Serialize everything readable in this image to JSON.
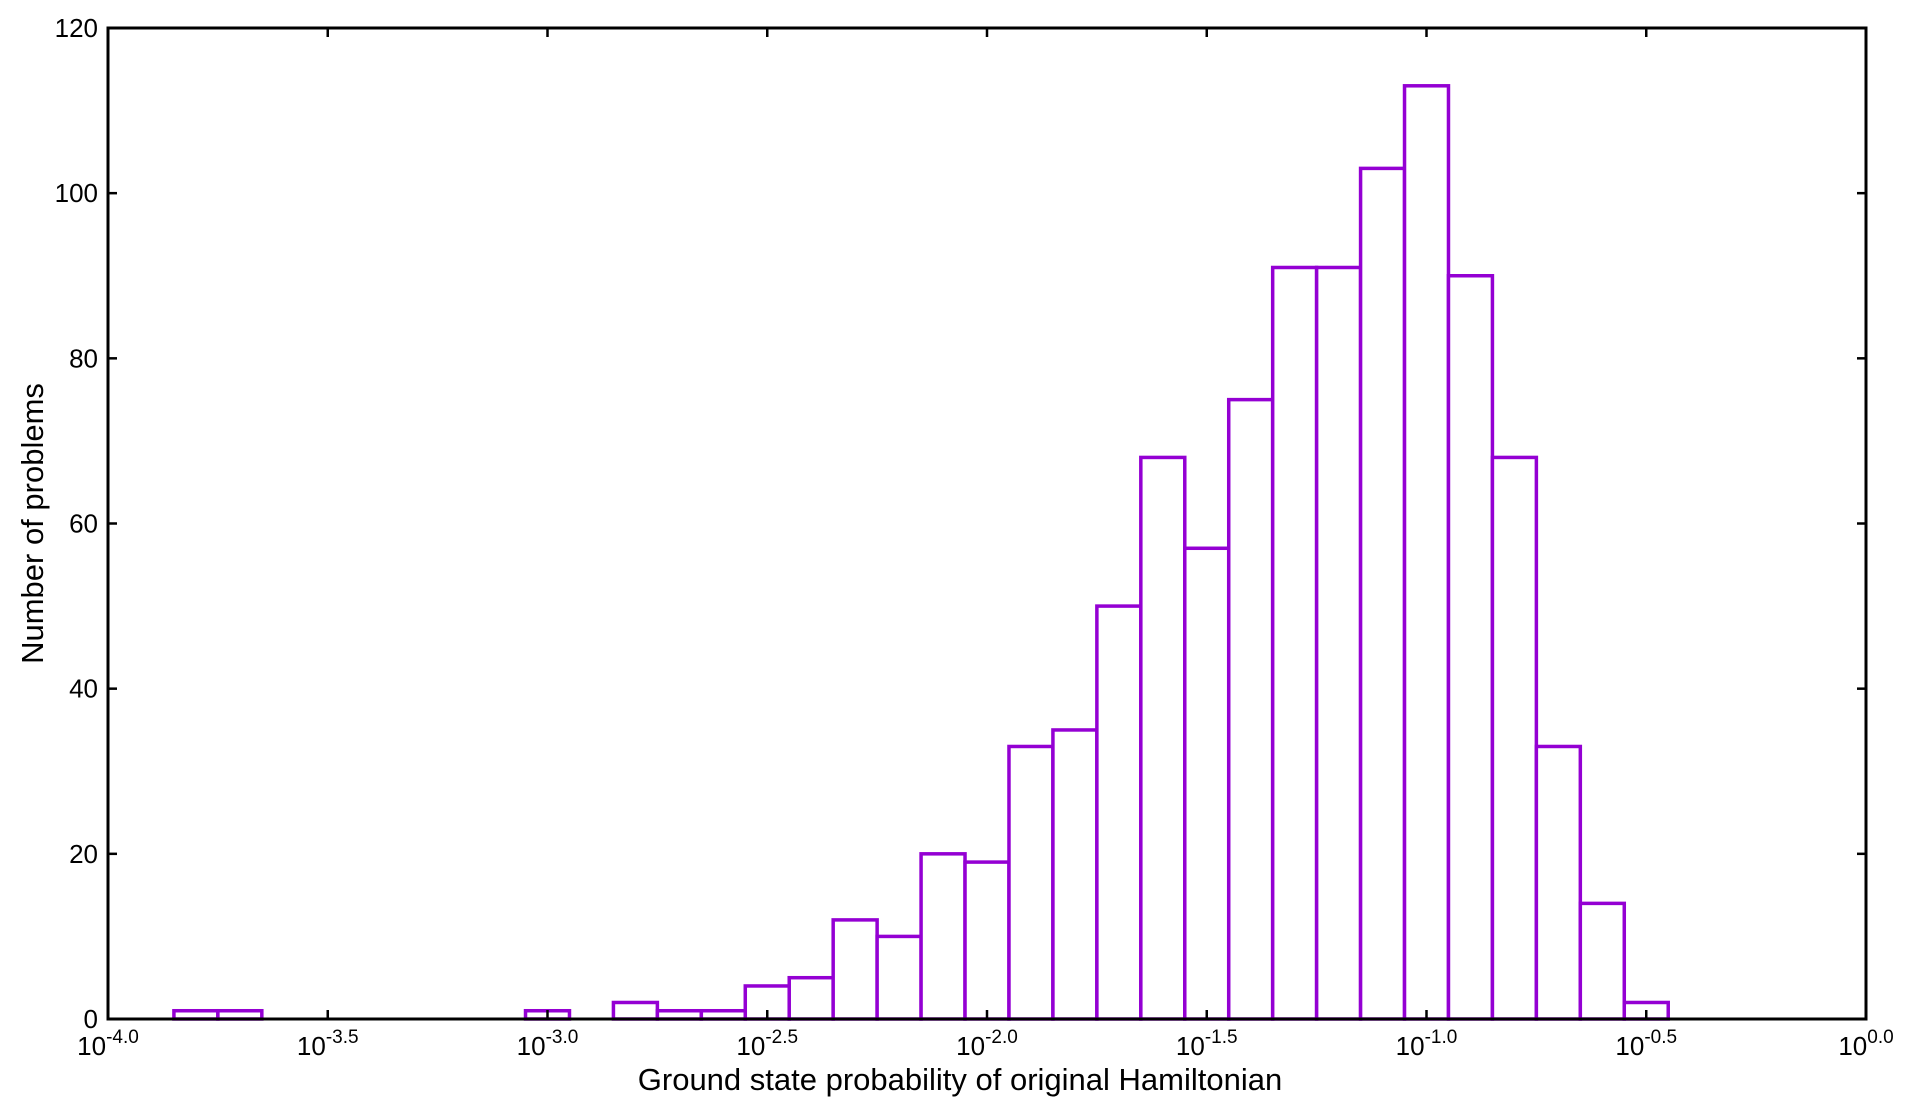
{
  "chart_data": {
    "type": "bar",
    "title": "",
    "xlabel": "Ground state probability of original Hamiltonian",
    "ylabel": "Number of problems",
    "x_scale": "log10",
    "xlim_log10": [
      -4.0,
      0.0
    ],
    "ylim": [
      0,
      120
    ],
    "grid": false,
    "legend": "none",
    "bar_color": "#9400D3",
    "bar_fill": "#ffffff",
    "bin_width_log10": 0.1,
    "x_ticks": [
      {
        "base": "10",
        "exp": "-4.0",
        "value": -4.0
      },
      {
        "base": "10",
        "exp": "-3.5",
        "value": -3.5
      },
      {
        "base": "10",
        "exp": "-3.0",
        "value": -3.0
      },
      {
        "base": "10",
        "exp": "-2.5",
        "value": -2.5
      },
      {
        "base": "10",
        "exp": "-2.0",
        "value": -2.0
      },
      {
        "base": "10",
        "exp": "-1.5",
        "value": -1.5
      },
      {
        "base": "10",
        "exp": "-1.0",
        "value": -1.0
      },
      {
        "base": "10",
        "exp": "-0.5",
        "value": -0.5
      },
      {
        "base": "10",
        "exp": "0.0",
        "value": 0.0
      }
    ],
    "y_ticks": [
      "0",
      "20",
      "40",
      "60",
      "80",
      "100",
      "120"
    ],
    "bins": [
      {
        "start": -3.85,
        "count": 1
      },
      {
        "start": -3.75,
        "count": 1
      },
      {
        "start": -3.05,
        "count": 1
      },
      {
        "start": -2.85,
        "count": 2
      },
      {
        "start": -2.75,
        "count": 1
      },
      {
        "start": -2.65,
        "count": 1
      },
      {
        "start": -2.55,
        "count": 4
      },
      {
        "start": -2.45,
        "count": 5
      },
      {
        "start": -2.35,
        "count": 12
      },
      {
        "start": -2.25,
        "count": 10
      },
      {
        "start": -2.15,
        "count": 20
      },
      {
        "start": -2.05,
        "count": 19
      },
      {
        "start": -1.95,
        "count": 33
      },
      {
        "start": -1.85,
        "count": 35
      },
      {
        "start": -1.75,
        "count": 50
      },
      {
        "start": -1.65,
        "count": 68
      },
      {
        "start": -1.55,
        "count": 57
      },
      {
        "start": -1.45,
        "count": 75
      },
      {
        "start": -1.35,
        "count": 91
      },
      {
        "start": -1.25,
        "count": 91
      },
      {
        "start": -1.15,
        "count": 103
      },
      {
        "start": -1.05,
        "count": 113
      },
      {
        "start": -0.95,
        "count": 90
      },
      {
        "start": -0.85,
        "count": 68
      },
      {
        "start": -0.75,
        "count": 33
      },
      {
        "start": -0.65,
        "count": 14
      },
      {
        "start": -0.55,
        "count": 2
      }
    ]
  }
}
